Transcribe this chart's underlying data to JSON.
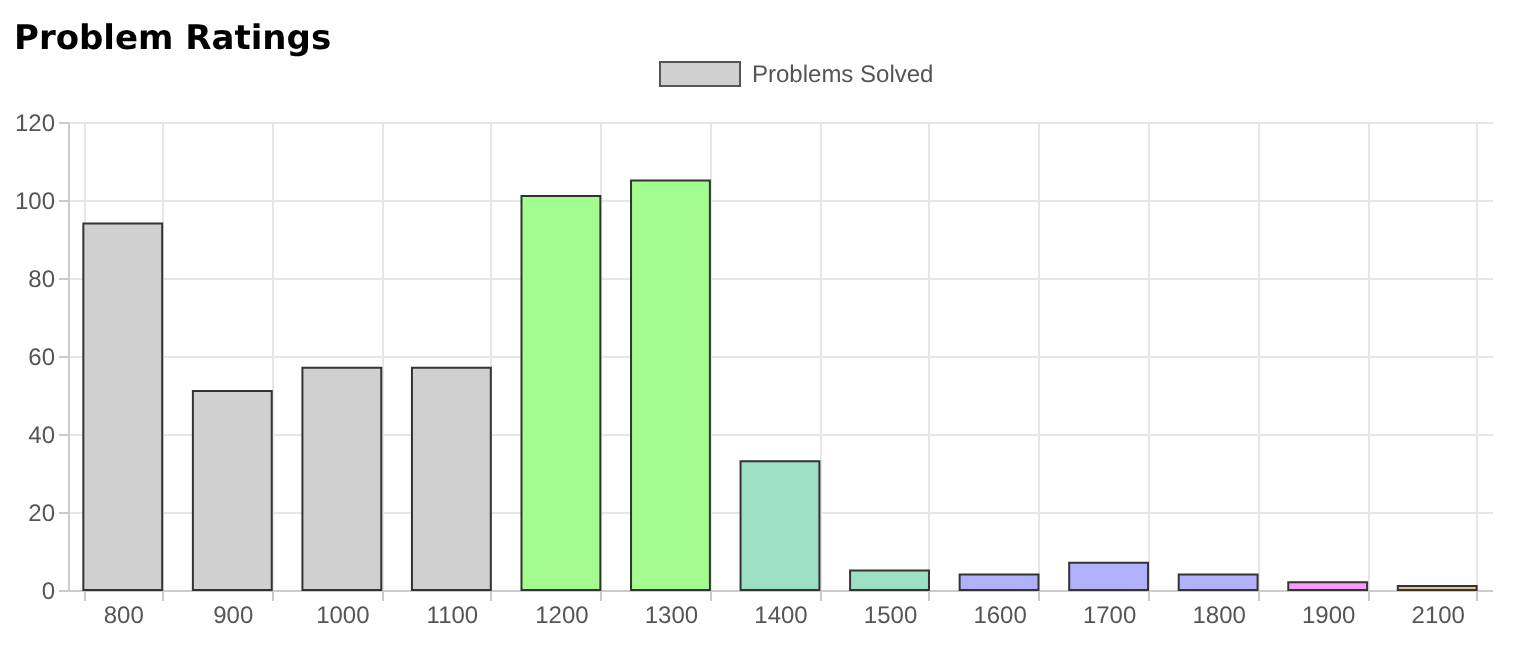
{
  "chart_data": {
    "type": "bar",
    "title": "Problem Ratings",
    "categories": [
      "800",
      "900",
      "1000",
      "1100",
      "1200",
      "1300",
      "1400",
      "1500",
      "1600",
      "1700",
      "1800",
      "1900",
      "2100"
    ],
    "series": [
      {
        "name": "Problems Solved",
        "color": "#d0d0d0",
        "values": [
          94,
          51,
          57,
          57,
          101,
          105,
          33,
          5,
          4,
          7,
          4,
          2,
          1
        ],
        "colors": [
          "#d0d0d0",
          "#d0d0d0",
          "#d0d0d0",
          "#d0d0d0",
          "#a4fb8f",
          "#a4fb8f",
          "#9ddfc2",
          "#9ddfc2",
          "#b1b1fb",
          "#b1b1fb",
          "#b1b1fb",
          "#f89bf8",
          "#e8c48c"
        ]
      }
    ],
    "ylim": [
      0,
      120
    ],
    "yticks": [
      0,
      20,
      40,
      60,
      80,
      100,
      120
    ],
    "grid": true,
    "legend": "top"
  }
}
